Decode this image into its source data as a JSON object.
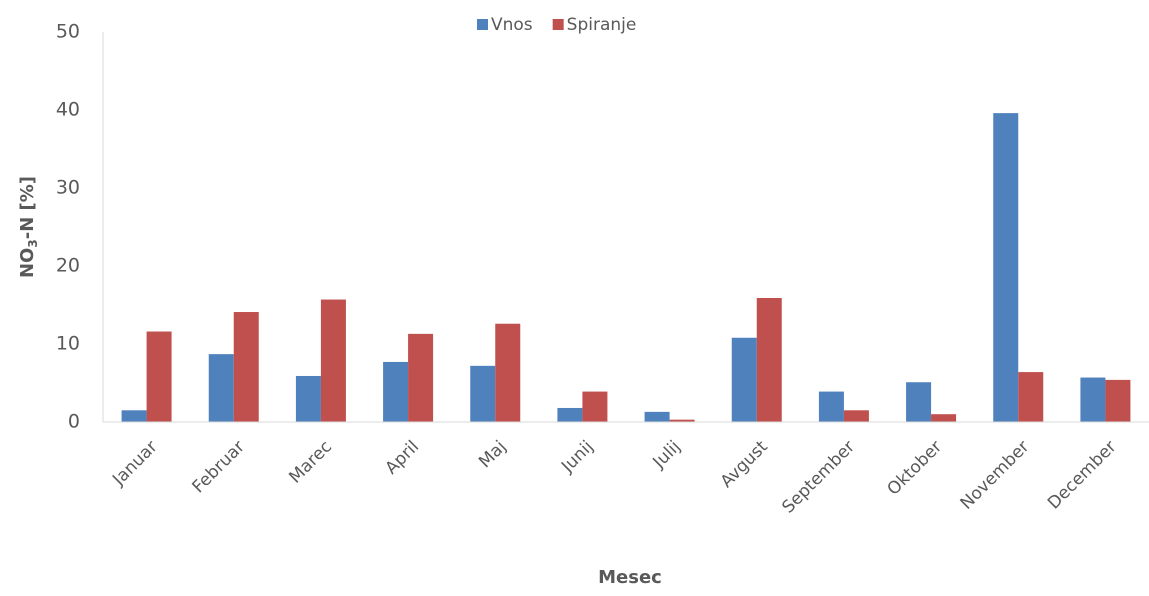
{
  "chart_data": {
    "type": "bar",
    "categories": [
      "Januar",
      "Februar",
      "Marec",
      "April",
      "Maj",
      "Junij",
      "Julij",
      "Avgust",
      "September",
      "Oktober",
      "November",
      "December"
    ],
    "series": [
      {
        "name": "Vnos",
        "color": "#4f81bd",
        "values": [
          1.5,
          8.7,
          5.9,
          7.7,
          7.2,
          1.8,
          1.3,
          10.8,
          3.9,
          5.1,
          39.6,
          5.7
        ]
      },
      {
        "name": "Spiranje",
        "color": "#c0504d",
        "values": [
          11.6,
          14.1,
          15.7,
          11.3,
          12.6,
          3.9,
          0.3,
          15.9,
          1.5,
          1.0,
          6.4,
          5.4
        ]
      }
    ],
    "xlabel": "Mesec",
    "ylabel": [
      "NO",
      "3",
      "-N [%]"
    ],
    "ylim": [
      0,
      50
    ],
    "yticks": [
      0,
      10,
      20,
      30,
      40,
      50
    ],
    "grid": false,
    "legend": "top"
  }
}
